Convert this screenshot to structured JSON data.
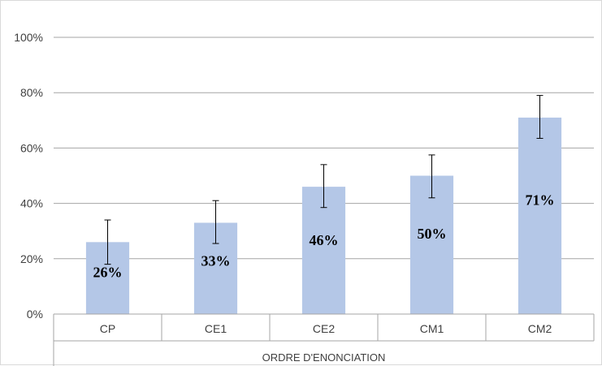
{
  "chart_data": {
    "type": "bar",
    "title": "",
    "xlabel": "ORDRE D'ENONCIATION",
    "ylabel": "",
    "categories": [
      "CP",
      "CE1",
      "CE2",
      "CM1",
      "CM2"
    ],
    "values": [
      26,
      33,
      46,
      50,
      71
    ],
    "data_labels": [
      "26%",
      "33%",
      "46%",
      "50%",
      "71%"
    ],
    "error_bars": {
      "lower": [
        18,
        25.5,
        38.5,
        42,
        63.5
      ],
      "upper": [
        34,
        41,
        54,
        57.5,
        79
      ]
    },
    "ylim": [
      0,
      100
    ],
    "yticks": [
      0,
      20,
      40,
      60,
      80,
      100
    ],
    "ytick_labels": [
      "0%",
      "20%",
      "40%",
      "60%",
      "80%",
      "100%"
    ],
    "grid": true,
    "legend": "none",
    "colors": {
      "bar": "#b4c7e7",
      "grid": "#a6a6a6",
      "error_bar": "#000000"
    }
  }
}
